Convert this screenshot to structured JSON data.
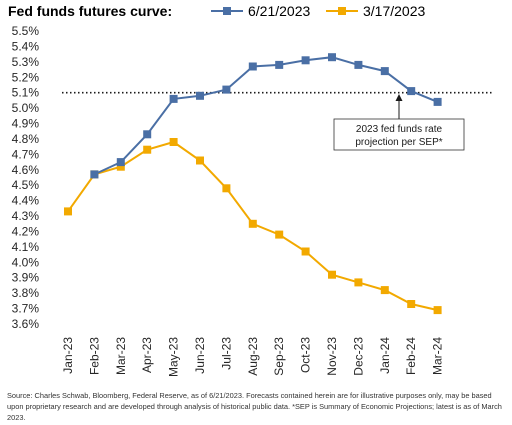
{
  "chart_data": {
    "type": "line",
    "legend_title": "Fed funds futures curve:",
    "categories": [
      "Jan-23",
      "Feb-23",
      "Mar-23",
      "Apr-23",
      "May-23",
      "Jun-23",
      "Jul-23",
      "Aug-23",
      "Sep-23",
      "Oct-23",
      "Nov-23",
      "Dec-23",
      "Jan-24",
      "Feb-24",
      "Mar-24"
    ],
    "series": [
      {
        "name": "6/21/2023",
        "color": "#4a6fa5",
        "marker": "square",
        "values": [
          null,
          4.57,
          4.65,
          4.83,
          5.06,
          5.08,
          5.12,
          5.27,
          5.28,
          5.31,
          5.33,
          5.28,
          5.24,
          5.11,
          5.04
        ]
      },
      {
        "name": "3/17/2023",
        "color": "#f2a900",
        "marker": "square",
        "values": [
          4.33,
          4.57,
          4.62,
          4.73,
          4.78,
          4.66,
          4.48,
          4.25,
          4.18,
          4.07,
          3.92,
          3.87,
          3.82,
          3.73,
          3.69
        ]
      }
    ],
    "reference_line": {
      "value": 5.1,
      "style": "dotted",
      "label": "2023 fed funds rate projection per SEP*"
    },
    "annotation_lines": [
      "2023 fed funds rate",
      "projection per SEP*"
    ],
    "yticks": [
      "5.5%",
      "5.4%",
      "5.3%",
      "5.2%",
      "5.1%",
      "5.0%",
      "4.9%",
      "4.8%",
      "4.7%",
      "4.6%",
      "4.5%",
      "4.4%",
      "4.3%",
      "4.2%",
      "4.1%",
      "4.0%",
      "3.9%",
      "3.8%",
      "3.7%",
      "3.6%"
    ],
    "ylim": [
      3.6,
      5.5
    ],
    "grid": false,
    "legend_position": "top"
  },
  "footnote": "Source: Charles Schwab, Bloomberg, Federal Reserve, as of 6/21/2023. Forecasts contained herein are for illustrative purposes only, may be based upon proprietary research and are developed through analysis of historical public data. *SEP is Summary of Economic Projections; latest is as of March 2023."
}
